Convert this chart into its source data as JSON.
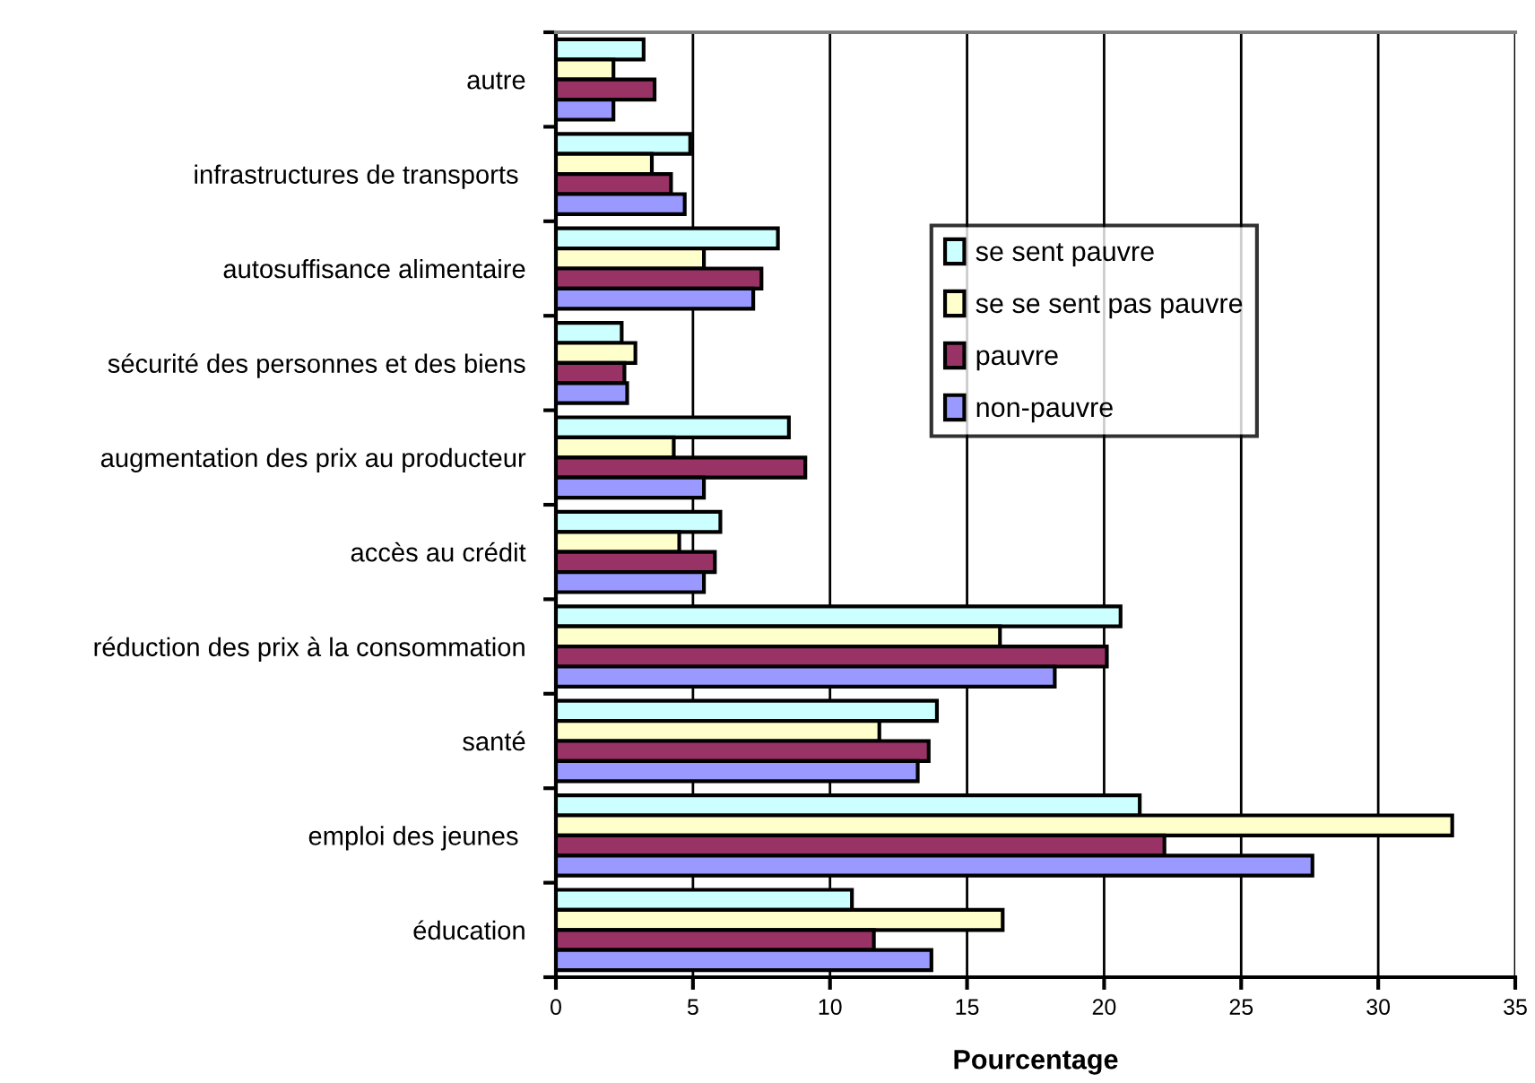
{
  "chart_data": {
    "type": "bar",
    "orientation": "horizontal",
    "xlabel": "Pourcentage",
    "categories": [
      "autre",
      "infrastructures de transports ",
      "autosuffisance alimentaire",
      "sécurité des personnes et des biens",
      "augmentation des prix au producteur",
      "accès au crédit",
      "réduction des prix à la consommation",
      "santé",
      "emploi des jeunes ",
      "éducation"
    ],
    "series": [
      {
        "name": "se sent pauvre",
        "color": "#ccffff",
        "values": [
          3.2,
          4.9,
          8.1,
          2.4,
          8.5,
          6.0,
          20.6,
          13.9,
          21.3,
          10.8
        ]
      },
      {
        "name": "se se sent pas pauvre",
        "color": "#ffffcc",
        "values": [
          2.1,
          3.5,
          5.4,
          2.9,
          4.3,
          4.5,
          16.2,
          11.8,
          32.7,
          16.3
        ]
      },
      {
        "name": "pauvre",
        "color": "#993366",
        "values": [
          3.6,
          4.2,
          7.5,
          2.5,
          9.1,
          5.8,
          20.1,
          13.6,
          22.2,
          11.6
        ]
      },
      {
        "name": "non-pauvre",
        "color": "#9999ff",
        "values": [
          2.1,
          4.7,
          7.2,
          2.6,
          5.4,
          5.4,
          18.2,
          13.2,
          27.6,
          13.7
        ]
      }
    ],
    "xlim": [
      0,
      35
    ],
    "xticks": [
      0,
      5,
      10,
      15,
      20,
      25,
      30,
      35
    ],
    "grid": "x",
    "legend": "top right"
  }
}
